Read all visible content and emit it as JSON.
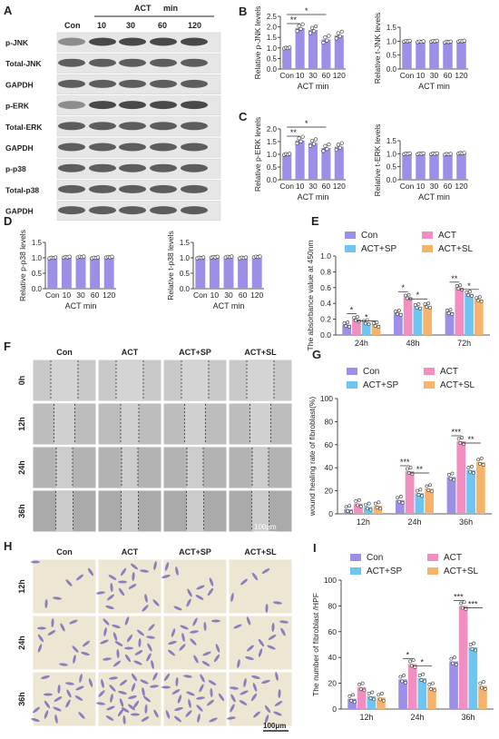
{
  "colors": {
    "con": "#9b8fe8",
    "act": "#f08fc0",
    "sp": "#6ec6f0",
    "sl": "#f5b36b",
    "bar_purple": "#9b8fe8"
  },
  "panel_letters": {
    "A": "A",
    "B": "B",
    "C": "C",
    "D": "D",
    "E": "E",
    "F": "F",
    "G": "G",
    "H": "H",
    "I": "I"
  },
  "western": {
    "header_con": "Con",
    "header_act": "ACT",
    "header_min": "min",
    "lanes": [
      "10",
      "30",
      "60",
      "120"
    ],
    "rows": [
      "p-JNK",
      "Total-JNK",
      "GAPDH",
      "p-ERK",
      "Total-ERK",
      "GAPDH",
      "p-p38",
      "Total-p38",
      "GAPDH"
    ]
  },
  "small_charts": [
    {
      "id": "b1",
      "ylabel": "Relative p-JNK levels",
      "xlabel": "ACT min",
      "categories": [
        "Con",
        "10",
        "30",
        "60",
        "120"
      ],
      "values": [
        1.0,
        1.95,
        1.85,
        1.4,
        1.6
      ],
      "ylim": [
        0.0,
        2.5
      ],
      "yticks": [
        "0.0",
        "0.5",
        "1.0",
        "1.5",
        "2.0",
        "2.5"
      ],
      "sig": [
        "**",
        "*"
      ]
    },
    {
      "id": "b2",
      "ylabel": "Relative t-JNK levels",
      "xlabel": "ACT min",
      "categories": [
        "Con",
        "10",
        "30",
        "60",
        "120"
      ],
      "values": [
        1.0,
        0.98,
        1.0,
        0.97,
        1.0
      ],
      "ylim": [
        0.0,
        1.5
      ],
      "yticks": [
        "0.0",
        "0.5",
        "1.0",
        "1.5"
      ],
      "sig": []
    },
    {
      "id": "c1",
      "ylabel": "Relative p-ERK levels",
      "xlabel": "ACT min",
      "categories": [
        "Con",
        "10",
        "30",
        "60",
        "120"
      ],
      "values": [
        1.0,
        1.55,
        1.45,
        1.25,
        1.3
      ],
      "ylim": [
        0.0,
        2.0
      ],
      "yticks": [
        "0.0",
        "0.5",
        "1.0",
        "1.5",
        "2.0"
      ],
      "sig": [
        "**",
        "*"
      ]
    },
    {
      "id": "c2",
      "ylabel": "Relative t-ERK levels",
      "xlabel": "ACT min",
      "categories": [
        "Con",
        "10",
        "30",
        "60",
        "120"
      ],
      "values": [
        1.0,
        1.0,
        1.0,
        0.98,
        1.02
      ],
      "ylim": [
        0.0,
        1.5
      ],
      "yticks": [
        "0.0",
        "0.5",
        "1.0",
        "1.5"
      ],
      "sig": []
    },
    {
      "id": "d1",
      "ylabel": "Relative p-p38 levels",
      "xlabel": "ACT min",
      "categories": [
        "Con",
        "10",
        "30",
        "60",
        "120"
      ],
      "values": [
        1.0,
        1.02,
        1.03,
        1.0,
        1.02
      ],
      "ylim": [
        0.0,
        1.5
      ],
      "yticks": [
        "0.0",
        "0.5",
        "1.0",
        "1.5"
      ],
      "sig": []
    },
    {
      "id": "d2",
      "ylabel": "Relative t-p38 levels",
      "xlabel": "ACT min",
      "categories": [
        "Con",
        "10",
        "30",
        "60",
        "120"
      ],
      "values": [
        1.0,
        1.02,
        1.03,
        1.0,
        1.03
      ],
      "ylim": [
        0.0,
        1.5
      ],
      "yticks": [
        "0.0",
        "0.5",
        "1.0",
        "1.5"
      ],
      "sig": []
    }
  ],
  "grouped_charts": [
    {
      "id": "e",
      "ylabel": "The absorbance value at 450nm",
      "groups": [
        "24h",
        "48h",
        "72h"
      ],
      "legend": [
        "Con",
        "ACT",
        "ACT+SP",
        "ACT+SL"
      ],
      "values": [
        [
          0.13,
          0.2,
          0.16,
          0.13
        ],
        [
          0.28,
          0.48,
          0.36,
          0.37
        ],
        [
          0.29,
          0.6,
          0.52,
          0.45
        ]
      ],
      "ylim": [
        0.0,
        1.0
      ],
      "yticks": [
        "0.0",
        "0.2",
        "0.4",
        "0.6",
        "0.8",
        "1.0"
      ],
      "sig": [
        [
          "*",
          "*"
        ],
        [
          "*",
          "*"
        ],
        [
          "**",
          "*"
        ]
      ]
    },
    {
      "id": "g",
      "ylabel": "wound healing rate of fibroblast(%)",
      "groups": [
        "12h",
        "24h",
        "36h"
      ],
      "legend": [
        "Con",
        "ACT",
        "ACT+SP",
        "ACT+SL"
      ],
      "values": [
        [
          4,
          9,
          6,
          7
        ],
        [
          12,
          37,
          18,
          22
        ],
        [
          32,
          63,
          38,
          45
        ]
      ],
      "ylim": [
        0,
        100
      ],
      "yticks": [
        "0",
        "20",
        "40",
        "60",
        "80",
        "100"
      ],
      "sig": [
        [],
        [
          "***",
          "**"
        ],
        [
          "***",
          "**"
        ]
      ]
    },
    {
      "id": "i",
      "ylabel": "The number of fibroblast /HPF",
      "groups": [
        "12h",
        "24h",
        "36h"
      ],
      "legend": [
        "Con",
        "ACT",
        "ACT+SP",
        "ACT+SL"
      ],
      "values": [
        [
          8,
          17,
          10,
          9
        ],
        [
          23,
          35,
          24,
          17
        ],
        [
          37,
          80,
          48,
          18
        ]
      ],
      "ylim": [
        0,
        100
      ],
      "yticks": [
        "0",
        "20",
        "40",
        "60",
        "80",
        "100"
      ],
      "sig": [
        [],
        [
          "*",
          "*"
        ],
        [
          "***",
          "***"
        ]
      ]
    }
  ],
  "chart_data": [
    {
      "type": "bar",
      "categories": [
        "Con",
        "10",
        "30",
        "60",
        "120"
      ],
      "values": [
        1.0,
        1.95,
        1.85,
        1.4,
        1.6
      ],
      "ylabel": "Relative p-JNK levels",
      "xlabel": "ACT min",
      "ylim": [
        0,
        2.5
      ]
    },
    {
      "type": "bar",
      "categories": [
        "Con",
        "10",
        "30",
        "60",
        "120"
      ],
      "values": [
        1.0,
        0.98,
        1.0,
        0.97,
        1.0
      ],
      "ylabel": "Relative t-JNK levels",
      "xlabel": "ACT min",
      "ylim": [
        0,
        1.5
      ]
    },
    {
      "type": "bar",
      "categories": [
        "Con",
        "10",
        "30",
        "60",
        "120"
      ],
      "values": [
        1.0,
        1.55,
        1.45,
        1.25,
        1.3
      ],
      "ylabel": "Relative p-ERK levels",
      "xlabel": "ACT min",
      "ylim": [
        0,
        2.0
      ]
    },
    {
      "type": "bar",
      "categories": [
        "Con",
        "10",
        "30",
        "60",
        "120"
      ],
      "values": [
        1.0,
        1.0,
        1.0,
        0.98,
        1.02
      ],
      "ylabel": "Relative t-ERK levels",
      "xlabel": "ACT min",
      "ylim": [
        0,
        1.5
      ]
    },
    {
      "type": "bar",
      "categories": [
        "Con",
        "10",
        "30",
        "60",
        "120"
      ],
      "values": [
        1.0,
        1.02,
        1.03,
        1.0,
        1.02
      ],
      "ylabel": "Relative p-p38 levels",
      "xlabel": "ACT min",
      "ylim": [
        0,
        1.5
      ]
    },
    {
      "type": "bar",
      "categories": [
        "Con",
        "10",
        "30",
        "60",
        "120"
      ],
      "values": [
        1.0,
        1.02,
        1.03,
        1.0,
        1.03
      ],
      "ylabel": "Relative t-p38 levels",
      "xlabel": "ACT min",
      "ylim": [
        0,
        1.5
      ]
    },
    {
      "type": "bar",
      "categories": [
        "24h",
        "48h",
        "72h"
      ],
      "series": [
        {
          "name": "Con",
          "values": [
            0.13,
            0.28,
            0.29
          ]
        },
        {
          "name": "ACT",
          "values": [
            0.2,
            0.48,
            0.6
          ]
        },
        {
          "name": "ACT+SP",
          "values": [
            0.16,
            0.36,
            0.52
          ]
        },
        {
          "name": "ACT+SL",
          "values": [
            0.13,
            0.37,
            0.45
          ]
        }
      ],
      "ylabel": "The absorbance value at 450nm",
      "ylim": [
        0,
        1.0
      ]
    },
    {
      "type": "bar",
      "categories": [
        "12h",
        "24h",
        "36h"
      ],
      "series": [
        {
          "name": "Con",
          "values": [
            4,
            12,
            32
          ]
        },
        {
          "name": "ACT",
          "values": [
            9,
            37,
            63
          ]
        },
        {
          "name": "ACT+SP",
          "values": [
            6,
            18,
            38
          ]
        },
        {
          "name": "ACT+SL",
          "values": [
            7,
            22,
            45
          ]
        }
      ],
      "ylabel": "wound healing rate of fibroblast(%)",
      "ylim": [
        0,
        100
      ]
    },
    {
      "type": "bar",
      "categories": [
        "12h",
        "24h",
        "36h"
      ],
      "series": [
        {
          "name": "Con",
          "values": [
            8,
            23,
            37
          ]
        },
        {
          "name": "ACT",
          "values": [
            17,
            35,
            80
          ]
        },
        {
          "name": "ACT+SP",
          "values": [
            10,
            24,
            48
          ]
        },
        {
          "name": "ACT+SL",
          "values": [
            9,
            17,
            18
          ]
        }
      ],
      "ylabel": "The number of fibroblast /HPF",
      "ylim": [
        0,
        100
      ]
    }
  ],
  "wound": {
    "cols": [
      "Con",
      "ACT",
      "ACT+SP",
      "ACT+SL"
    ],
    "rows": [
      "0h",
      "12h",
      "24h",
      "36h"
    ],
    "scale": "100μm"
  },
  "transwell": {
    "cols": [
      "Con",
      "ACT",
      "ACT+SP",
      "ACT+SL"
    ],
    "rows": [
      "12h",
      "24h",
      "36h"
    ],
    "scale": "100μm"
  }
}
